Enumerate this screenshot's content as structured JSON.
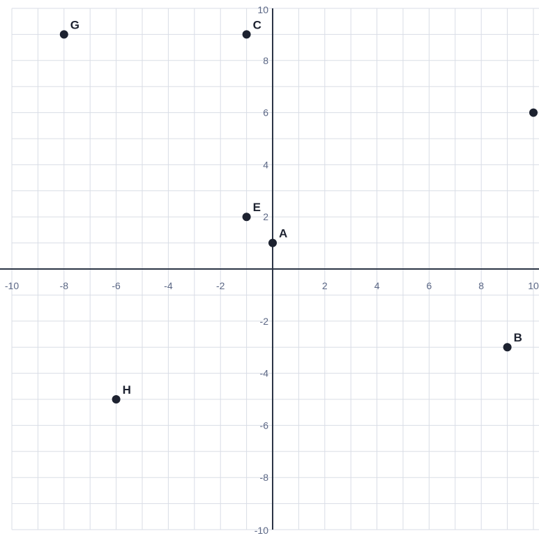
{
  "chart_data": {
    "type": "scatter",
    "title": "",
    "xlabel": "",
    "ylabel": "",
    "xlim": [
      -10,
      10
    ],
    "ylim": [
      -10,
      10
    ],
    "grid": true,
    "grid_step": 1,
    "x_ticks": [
      -10,
      -8,
      -6,
      -4,
      -2,
      2,
      4,
      6,
      8,
      10
    ],
    "y_ticks": [
      10,
      8,
      6,
      4,
      2,
      -2,
      -4,
      -6,
      -8,
      -10
    ],
    "points": [
      {
        "label": "G",
        "x": -8,
        "y": 9
      },
      {
        "label": "C",
        "x": -1,
        "y": 9
      },
      {
        "label": "",
        "x": 10,
        "y": 6
      },
      {
        "label": "E",
        "x": -1,
        "y": 2
      },
      {
        "label": "A",
        "x": 0,
        "y": 1
      },
      {
        "label": "B",
        "x": 9,
        "y": -3
      },
      {
        "label": "H",
        "x": -6,
        "y": -5
      }
    ],
    "colors": {
      "point": "#1d2230",
      "axis": "#2b3445",
      "grid": "#d9dde6",
      "tick": "#5b6785"
    }
  }
}
